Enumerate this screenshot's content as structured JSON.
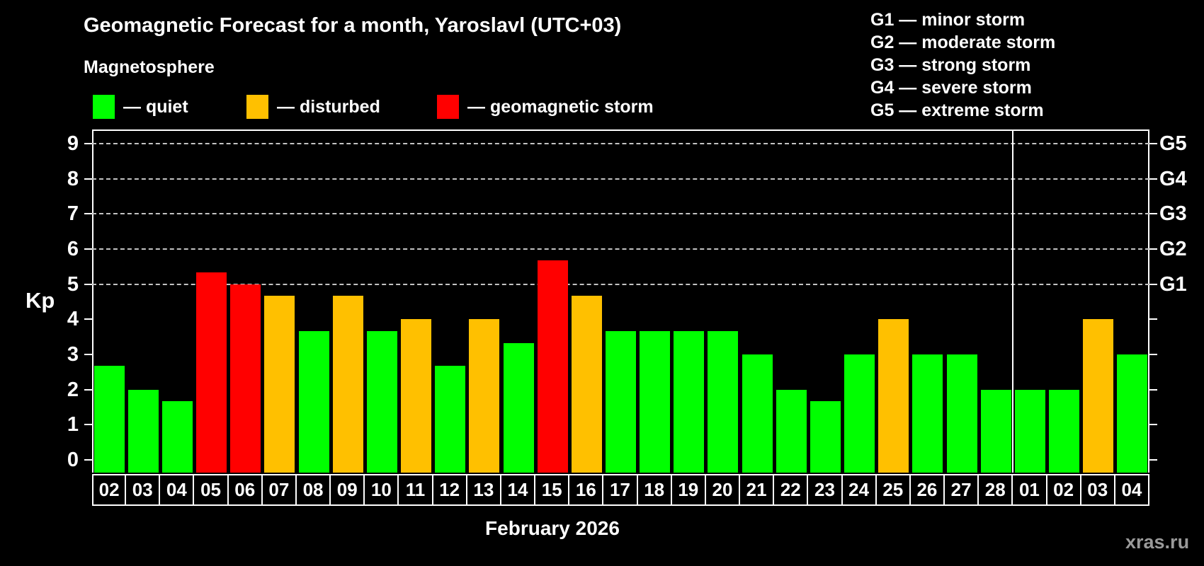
{
  "header": {
    "title": "Geomagnetic Forecast for a month, Yaroslavl (UTC+03)",
    "subtitle": "Magnetosphere"
  },
  "legend": {
    "items": [
      {
        "id": "quiet",
        "label": "— quiet",
        "color": "#00ff00"
      },
      {
        "id": "disturbed",
        "label": "— disturbed",
        "color": "#ffc000"
      },
      {
        "id": "storm",
        "label": "— geomagnetic storm",
        "color": "#ff0000"
      }
    ]
  },
  "storm_scale": {
    "items": [
      "G1 — minor storm",
      "G2 — moderate storm",
      "G3 — strong storm",
      "G4 — severe storm",
      "G5 — extreme storm"
    ]
  },
  "watermark": "xras.ru",
  "chart_data": {
    "type": "bar",
    "title": "Geomagnetic Forecast for a month, Yaroslavl (UTC+03)",
    "ylabel": "Kp",
    "xlabel": "February 2026",
    "ylim": [
      -0.36,
      9.4
    ],
    "y_ticks": [
      0,
      1,
      2,
      3,
      4,
      5,
      6,
      7,
      8,
      9
    ],
    "gridlines_at": [
      5,
      6,
      7,
      8,
      9
    ],
    "grid": "dashed horizontal at Kp 5-9 only",
    "right_axis_labels": [
      {
        "value": 5,
        "label": "G1"
      },
      {
        "value": 6,
        "label": "G2"
      },
      {
        "value": 7,
        "label": "G3"
      },
      {
        "value": 8,
        "label": "G4"
      },
      {
        "value": 9,
        "label": "G5"
      }
    ],
    "categories": [
      "02",
      "03",
      "04",
      "05",
      "06",
      "07",
      "08",
      "09",
      "10",
      "11",
      "12",
      "13",
      "14",
      "15",
      "16",
      "17",
      "18",
      "19",
      "20",
      "21",
      "22",
      "23",
      "24",
      "25",
      "26",
      "27",
      "28",
      "01",
      "02",
      "03",
      "04"
    ],
    "values": [
      2.67,
      2.0,
      1.67,
      5.33,
      5.0,
      4.67,
      3.67,
      4.67,
      3.67,
      4.0,
      2.67,
      4.0,
      3.33,
      5.67,
      4.67,
      3.67,
      3.67,
      3.67,
      3.67,
      3.0,
      2.0,
      1.67,
      3.0,
      4.0,
      3.0,
      3.0,
      2.0,
      2.0,
      2.0,
      4.0,
      3.0
    ],
    "month_boundary_index": 27,
    "color_thresholds": {
      "disturbed_from": 4,
      "storm_from": 5
    },
    "colors": {
      "quiet": "#00ff00",
      "disturbed": "#ffc000",
      "storm": "#ff0000"
    }
  }
}
